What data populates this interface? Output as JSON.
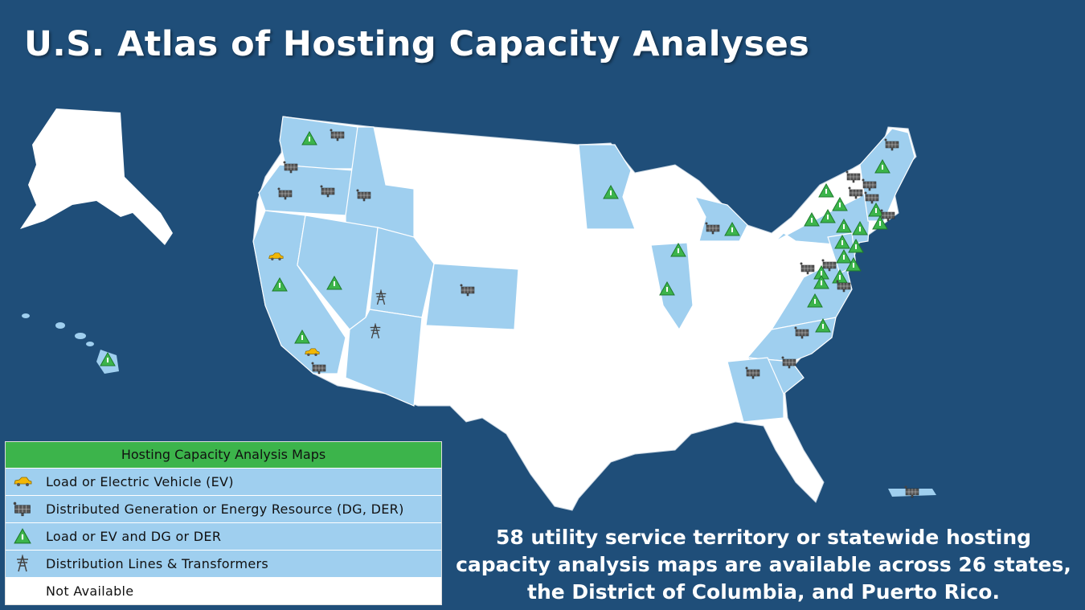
{
  "header": {
    "title": "U.S. Atlas of Hosting Capacity Analyses"
  },
  "legend": {
    "title": "Hosting Capacity Analysis Maps",
    "items": [
      "Load or Electric Vehicle (EV)",
      "Distributed Generation or Energy Resource (DG, DER)",
      "Load or EV and DG or DER",
      "Distribution Lines & Transformers",
      "Not Available"
    ]
  },
  "footnote": "58 utility service territory or statewide hosting capacity analysis maps are available across 26 states, the District of Columbia, and Puerto Rico."
}
